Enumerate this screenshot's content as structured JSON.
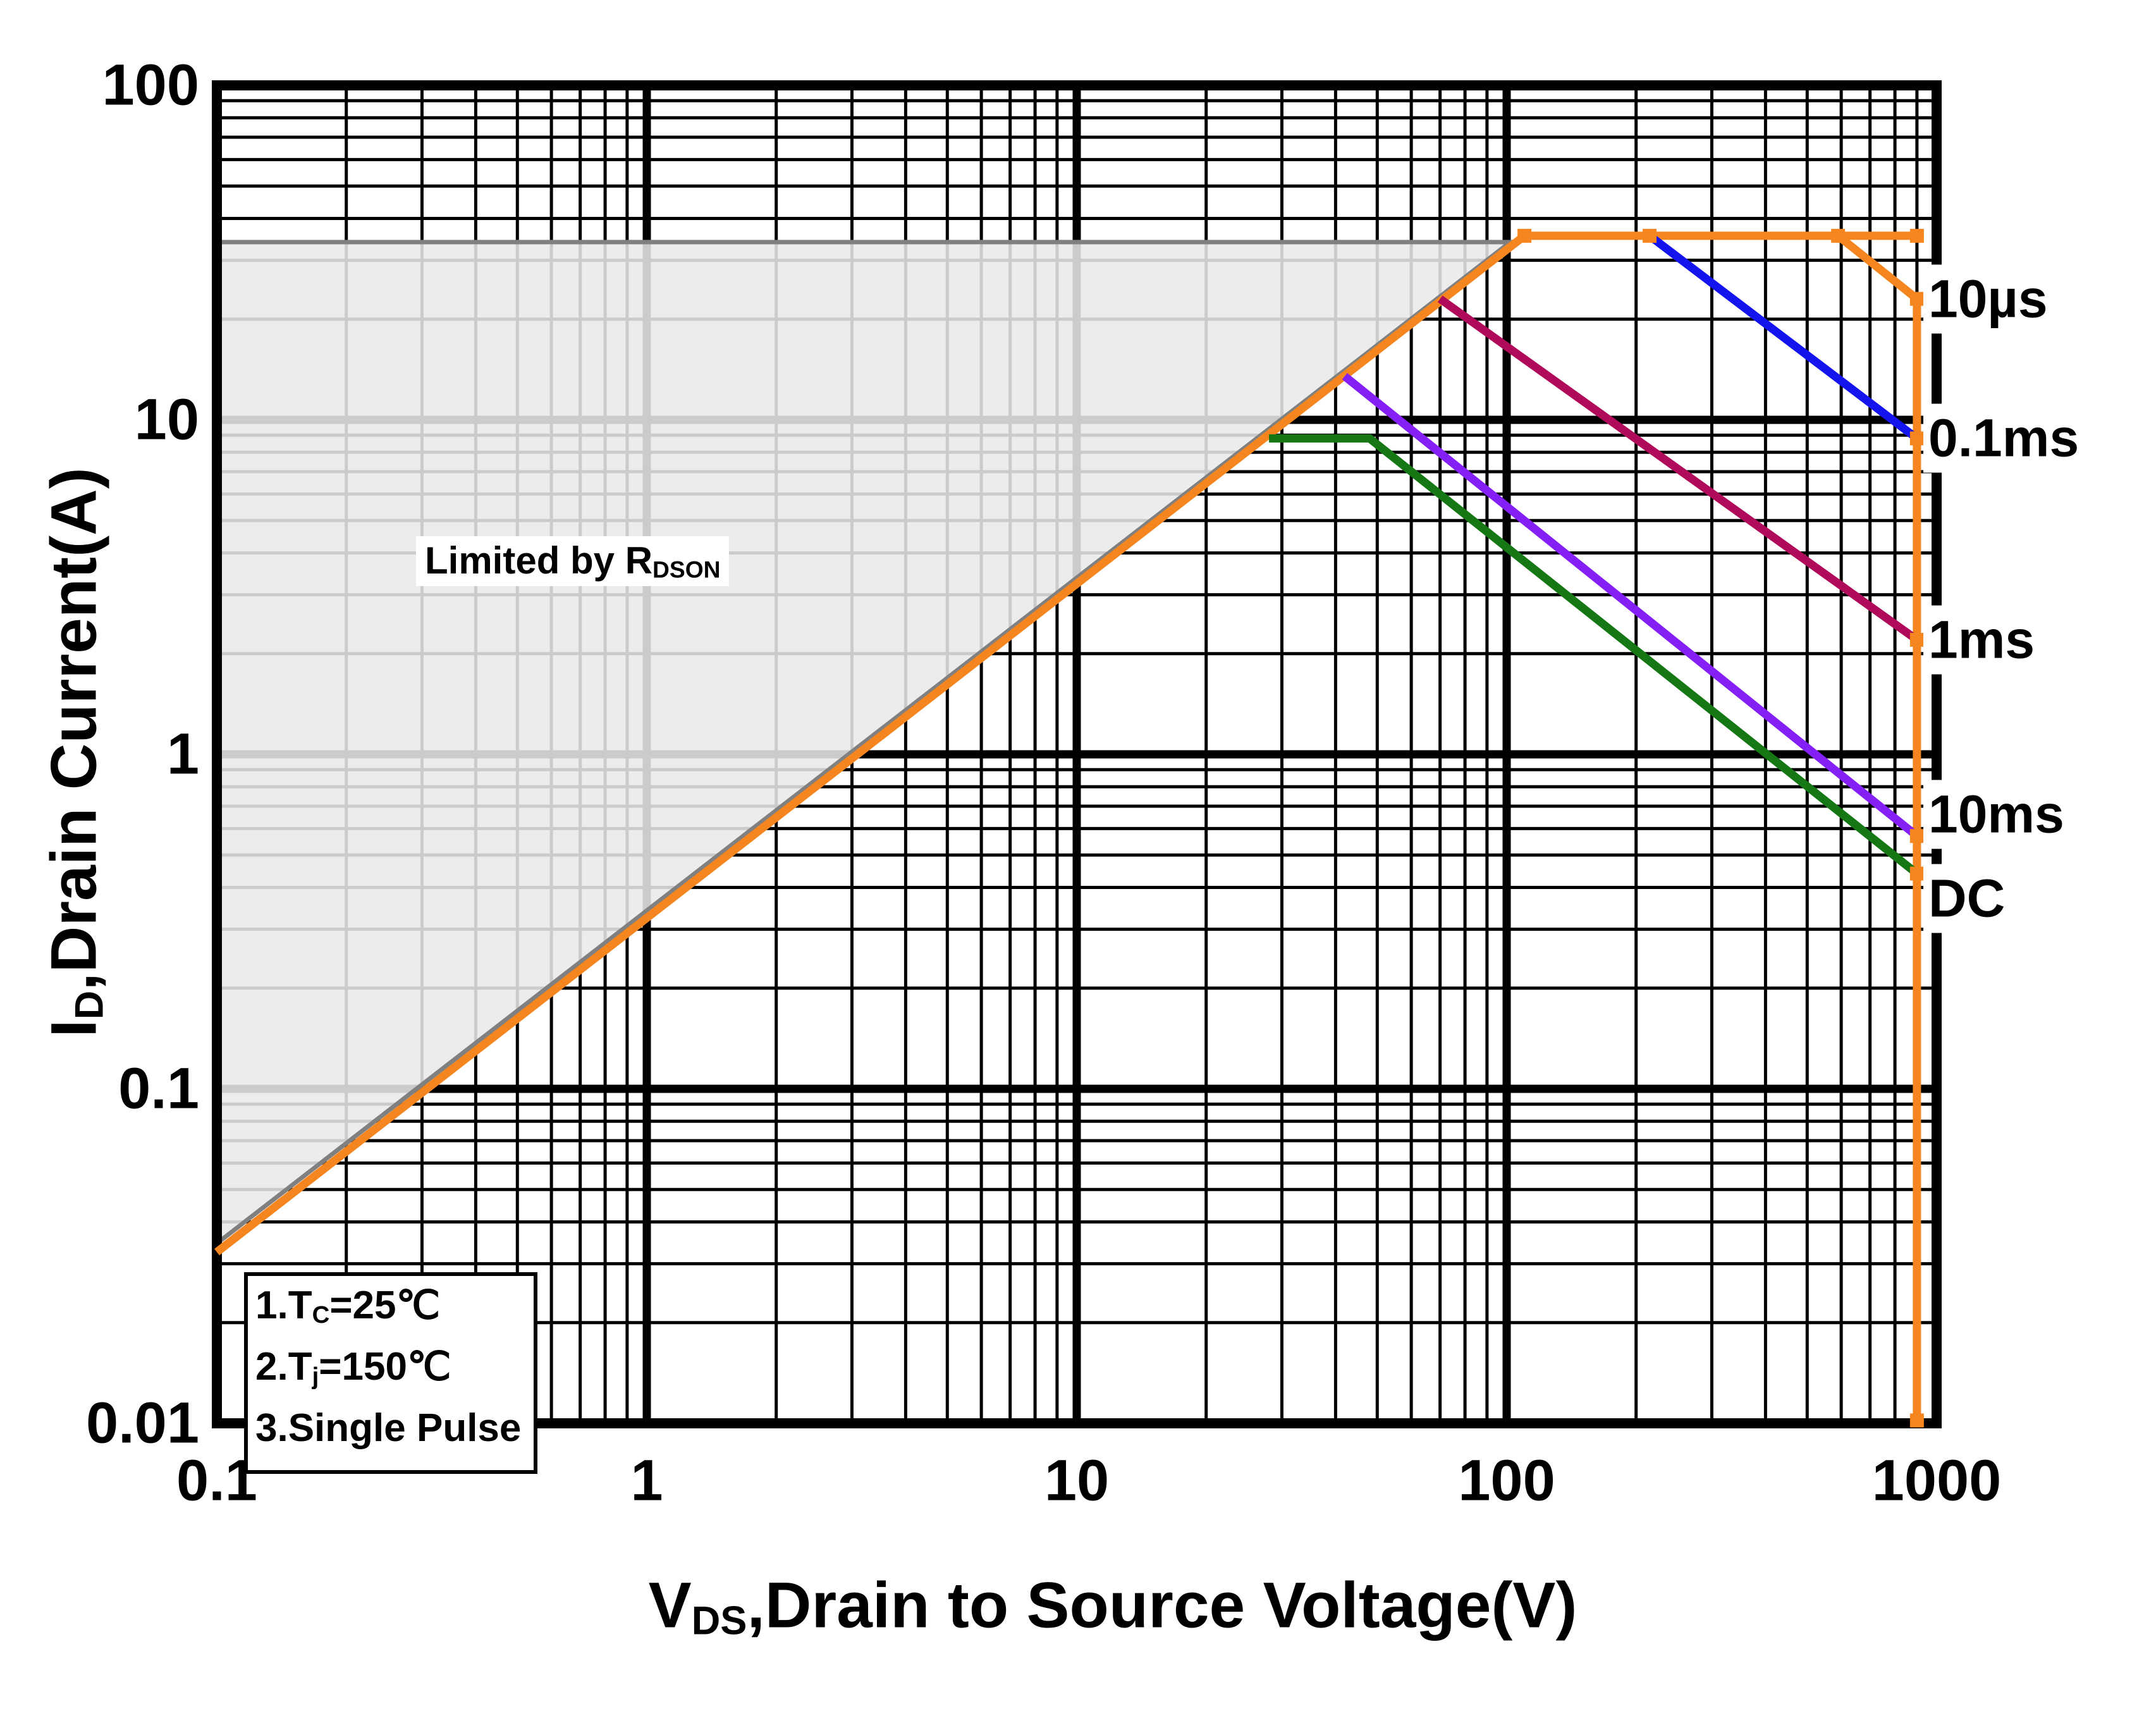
{
  "chart_data": {
    "type": "line",
    "title": "",
    "log_x": true,
    "log_y": true,
    "xlim": [
      0.1,
      1000
    ],
    "ylim": [
      0.01,
      100
    ],
    "xlabel": "VDS,Drain to Source Voltage(V)",
    "ylabel": "ID,Drain Current(A)",
    "grid": "log decades with minor lines, black, on",
    "legend_position": "inline labels at right edge",
    "series": [
      {
        "name": "10µs",
        "color": "#F5861F",
        "points": [
          [
            0.1,
            0.0325
          ],
          [
            110,
            35.5
          ],
          [
            590,
            35.5
          ],
          [
            900,
            23
          ],
          [
            900,
            0.0102
          ]
        ]
      },
      {
        "name": "10µs plateau extension",
        "color": "#F5861F",
        "points": [
          [
            590,
            35.5
          ],
          [
            900,
            35.5
          ]
        ]
      },
      {
        "name": "0.1ms",
        "color": "#1414EE",
        "points": [
          [
            215,
            35.5
          ],
          [
            900,
            8.8
          ]
        ]
      },
      {
        "name": "1ms",
        "color": "#B00A5A",
        "points": [
          [
            70,
            23
          ],
          [
            900,
            2.2
          ]
        ]
      },
      {
        "name": "10ms",
        "color": "#8420F5",
        "points": [
          [
            42,
            13.5
          ],
          [
            900,
            0.57
          ]
        ]
      },
      {
        "name": "DC",
        "color": "#157815",
        "points": [
          [
            28,
            8.8
          ],
          [
            48,
            8.8
          ],
          [
            900,
            0.44
          ]
        ]
      }
    ],
    "markers": {
      "color": "#F5861F",
      "size": 22,
      "points": [
        [
          110,
          35.5
        ],
        [
          215,
          35.5
        ],
        [
          590,
          35.5
        ],
        [
          900,
          35.5
        ],
        [
          900,
          23
        ],
        [
          900,
          8.8
        ],
        [
          900,
          2.2
        ],
        [
          900,
          0.57
        ],
        [
          900,
          0.44
        ],
        [
          900,
          0.0102
        ]
      ]
    },
    "shaded_region": {
      "label": "Limited by RDSON",
      "fill": "#E9E9E9",
      "fill_opacity": 0.87,
      "edge": "#808080",
      "points": [
        [
          0.1,
          34
        ],
        [
          102,
          34
        ],
        [
          0.1,
          0.0345
        ]
      ]
    }
  },
  "axes": {
    "x": {
      "title": {
        "pre": "V",
        "sub": "DS",
        "rest": ",Drain to Source Voltage(V)"
      },
      "tick_labels": [
        "0.1",
        "1",
        "10",
        "100",
        "1000"
      ],
      "tick_values": [
        0.1,
        1,
        10,
        100,
        1000
      ]
    },
    "y": {
      "title": {
        "pre": "I",
        "sub": "D",
        "rest": ",Drain Current(A)"
      },
      "tick_labels": [
        "100",
        "10",
        "1",
        "0.1",
        "0.01"
      ],
      "tick_values": [
        100,
        10,
        1,
        0.1,
        0.01
      ]
    }
  },
  "curve_labels": [
    {
      "text": "10µs",
      "anchor_current": 23
    },
    {
      "text": "0.1ms",
      "anchor_current": 8.8
    },
    {
      "text": "1ms",
      "anchor_current": 2.2
    },
    {
      "text": "10ms",
      "anchor_current": 0.66
    },
    {
      "text": "DC",
      "anchor_current": 0.37
    }
  ],
  "notes": [
    {
      "pre": "1.T",
      "sub": "C",
      "post": "=25℃"
    },
    {
      "pre": "2.T",
      "sub": "j",
      "post": "=150℃"
    },
    {
      "pre": "3.Single Pulse",
      "sub": "",
      "post": ""
    }
  ],
  "region_label": {
    "pre": "Limited by R",
    "sub": "DSON"
  },
  "colors": {
    "curve_10us": "#F5861F",
    "curve_0_1ms": "#1414EE",
    "curve_1ms": "#B00A5A",
    "curve_10ms": "#8420F5",
    "curve_dc": "#157815",
    "shaded_fill": "#E9E9E9",
    "shaded_edge": "#808080",
    "grid": "#000000",
    "background": "#FFFFFF"
  }
}
